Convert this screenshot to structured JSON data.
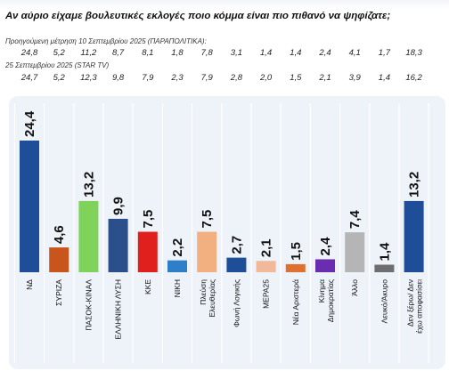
{
  "header": {
    "question": "Αν αύριο είχαμε βουλευτικές εκλογές ποιο κόμμα είναι πιο πιθανό να ψηφίζατε;",
    "previous_label": "Προηγούμενη μέτρηση 10 Σεπτεμβρίου 2025 (ΠΑΡΑΠΟΛΙΤΙΚΑ):",
    "current_label": "25 Σεπτεμβρίου 2025 (STAR TV)"
  },
  "chart_data": {
    "type": "bar",
    "categories": [
      "ΝΔ",
      "ΣΥΡΙΖΑ",
      "ΠΑΣΟΚ-ΚΙΝΑΛ",
      "ΕΛΛΗΝΙΚΗ ΛΥΣΗ",
      "ΚΚΕ",
      "ΝΙΚΗ",
      "Πλεύση Ελευθερίας",
      "Φωνή Λογικής",
      "ΜΕΡΑ25",
      "Νέα Αριστερά",
      "Κίνημα Δημοκρατίας",
      "Άλλο",
      "Λευκό/Άκυρο",
      "Δεν ξέρω/ Δεν έχω αποφασίσει"
    ],
    "values": [
      24.4,
      4.6,
      13.2,
      9.9,
      7.5,
      2.2,
      7.5,
      2.7,
      2.1,
      1.5,
      2.4,
      7.4,
      1.4,
      13.2
    ],
    "value_labels": [
      "24,4",
      "4,6",
      "13,2",
      "9,9",
      "7,5",
      "2,2",
      "7,5",
      "2,7",
      "2,1",
      "1,5",
      "2,4",
      "7,4",
      "1,4",
      "13,2"
    ],
    "colors": [
      "#1f4e99",
      "#c8561c",
      "#7fd35a",
      "#2a4f8a",
      "#e0201d",
      "#2f7fc8",
      "#f2b080",
      "#1f4e99",
      "#f2b89a",
      "#e07030",
      "#6a2db0",
      "#b5b5b5",
      "#6e6e6e",
      "#1f4e99"
    ],
    "previous_values": [
      "24,8",
      "5,2",
      "11,2",
      "8,7",
      "8,1",
      "1,8",
      "7,8",
      "3,1",
      "1,4",
      "1,4",
      "2,4",
      "4,1",
      "1,7",
      "18,3"
    ],
    "current_values": [
      "24,7",
      "5,2",
      "12,3",
      "9,8",
      "7,9",
      "2,3",
      "7,9",
      "2,8",
      "2,0",
      "1,5",
      "2,1",
      "3,9",
      "1,4",
      "16,2"
    ],
    "ylim": [
      0,
      30
    ],
    "grid": false,
    "title": "",
    "xlabel": "",
    "ylabel": ""
  }
}
